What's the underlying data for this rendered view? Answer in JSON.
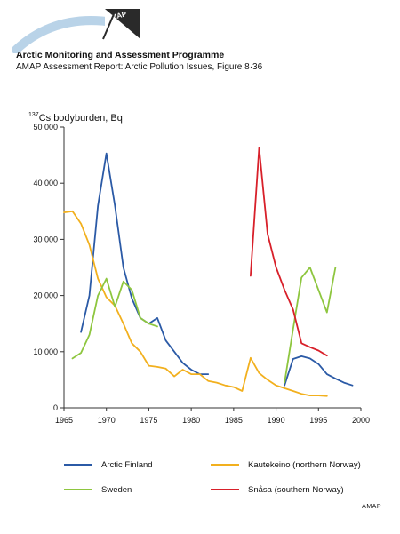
{
  "header": {
    "logo_text": "AMAP",
    "title": "Arctic Monitoring and Assessment Programme",
    "subtitle": "AMAP Assessment Report: Arctic Pollution Issues, Figure 8·36"
  },
  "footer": {
    "credit": "AMAP"
  },
  "colors": {
    "arctic_finland": "#2b5aa6",
    "kautekeino": "#f2b01e",
    "sweden": "#8ec63f",
    "snasa": "#d8202a",
    "logo_arc": "#b9d3e8"
  },
  "chart_data": {
    "type": "line",
    "ylabel_sup": "137",
    "ylabel_main": "Cs bodyburden, Bq",
    "xlabel": "",
    "xlim": [
      1965,
      2000
    ],
    "ylim": [
      0,
      50000
    ],
    "xticks": [
      1965,
      1970,
      1975,
      1980,
      1985,
      1990,
      1995,
      2000
    ],
    "yticks": [
      0,
      10000,
      20000,
      30000,
      40000,
      50000
    ],
    "ytick_labels": [
      "0",
      "10 000",
      "20 000",
      "30 000",
      "40 000",
      "50 000"
    ],
    "grid": false,
    "legend_position": "bottom",
    "series": [
      {
        "name": "Arctic Finland",
        "color_key": "arctic_finland",
        "segments": [
          [
            [
              1967,
              13500
            ],
            [
              1968,
              20000
            ],
            [
              1969,
              36000
            ],
            [
              1970,
              45300
            ],
            [
              1971,
              36000
            ],
            [
              1972,
              25000
            ],
            [
              1973,
              19500
            ],
            [
              1974,
              16000
            ],
            [
              1975,
              15000
            ],
            [
              1976,
              16000
            ],
            [
              1977,
              12000
            ],
            [
              1978,
              10000
            ],
            [
              1979,
              8000
            ],
            [
              1980,
              6800
            ],
            [
              1981,
              6000
            ],
            [
              1982,
              6000
            ]
          ],
          [
            [
              1991,
              4000
            ],
            [
              1992,
              8700
            ],
            [
              1993,
              9200
            ],
            [
              1994,
              8800
            ],
            [
              1995,
              7800
            ],
            [
              1996,
              6000
            ],
            [
              1997,
              5200
            ],
            [
              1998,
              4500
            ],
            [
              1999,
              4000
            ]
          ]
        ]
      },
      {
        "name": "Kautekeino (northern Norway)",
        "color_key": "kautekeino",
        "segments": [
          [
            [
              1965,
              34800
            ],
            [
              1966,
              35000
            ],
            [
              1967,
              32800
            ],
            [
              1968,
              29000
            ],
            [
              1969,
              23000
            ],
            [
              1970,
              19700
            ],
            [
              1971,
              18200
            ],
            [
              1972,
              15000
            ],
            [
              1973,
              11500
            ],
            [
              1974,
              10000
            ],
            [
              1975,
              7500
            ],
            [
              1976,
              7300
            ],
            [
              1977,
              7000
            ],
            [
              1978,
              5600
            ],
            [
              1979,
              6800
            ],
            [
              1980,
              6000
            ],
            [
              1981,
              6000
            ],
            [
              1982,
              4800
            ],
            [
              1983,
              4500
            ],
            [
              1984,
              4000
            ],
            [
              1985,
              3700
            ],
            [
              1986,
              3000
            ],
            [
              1987,
              8900
            ],
            [
              1988,
              6200
            ],
            [
              1989,
              5000
            ],
            [
              1990,
              4000
            ],
            [
              1991,
              3500
            ],
            [
              1992,
              3000
            ],
            [
              1993,
              2500
            ],
            [
              1994,
              2200
            ],
            [
              1995,
              2200
            ],
            [
              1996,
              2100
            ]
          ]
        ]
      },
      {
        "name": "Sweden",
        "color_key": "sweden",
        "segments": [
          [
            [
              1966,
              8800
            ],
            [
              1967,
              9800
            ],
            [
              1968,
              13000
            ],
            [
              1969,
              20000
            ],
            [
              1970,
              23000
            ],
            [
              1971,
              18000
            ],
            [
              1972,
              22500
            ],
            [
              1973,
              21000
            ],
            [
              1974,
              16000
            ],
            [
              1975,
              15000
            ],
            [
              1976,
              14500
            ]
          ],
          [
            [
              1991,
              4500
            ],
            [
              1992,
              14000
            ],
            [
              1993,
              23200
            ],
            [
              1994,
              25000
            ],
            [
              1995,
              21000
            ],
            [
              1996,
              17000
            ],
            [
              1997,
              25000
            ]
          ]
        ]
      },
      {
        "name": "Snåsa (southern Norway)",
        "color_key": "snasa",
        "segments": [
          [
            [
              1987,
              23500
            ],
            [
              1988,
              46300
            ],
            [
              1989,
              31000
            ],
            [
              1990,
              25000
            ],
            [
              1991,
              21000
            ],
            [
              1992,
              17500
            ],
            [
              1993,
              11500
            ],
            [
              1994,
              10800
            ],
            [
              1995,
              10200
            ],
            [
              1996,
              9300
            ]
          ]
        ]
      }
    ]
  }
}
